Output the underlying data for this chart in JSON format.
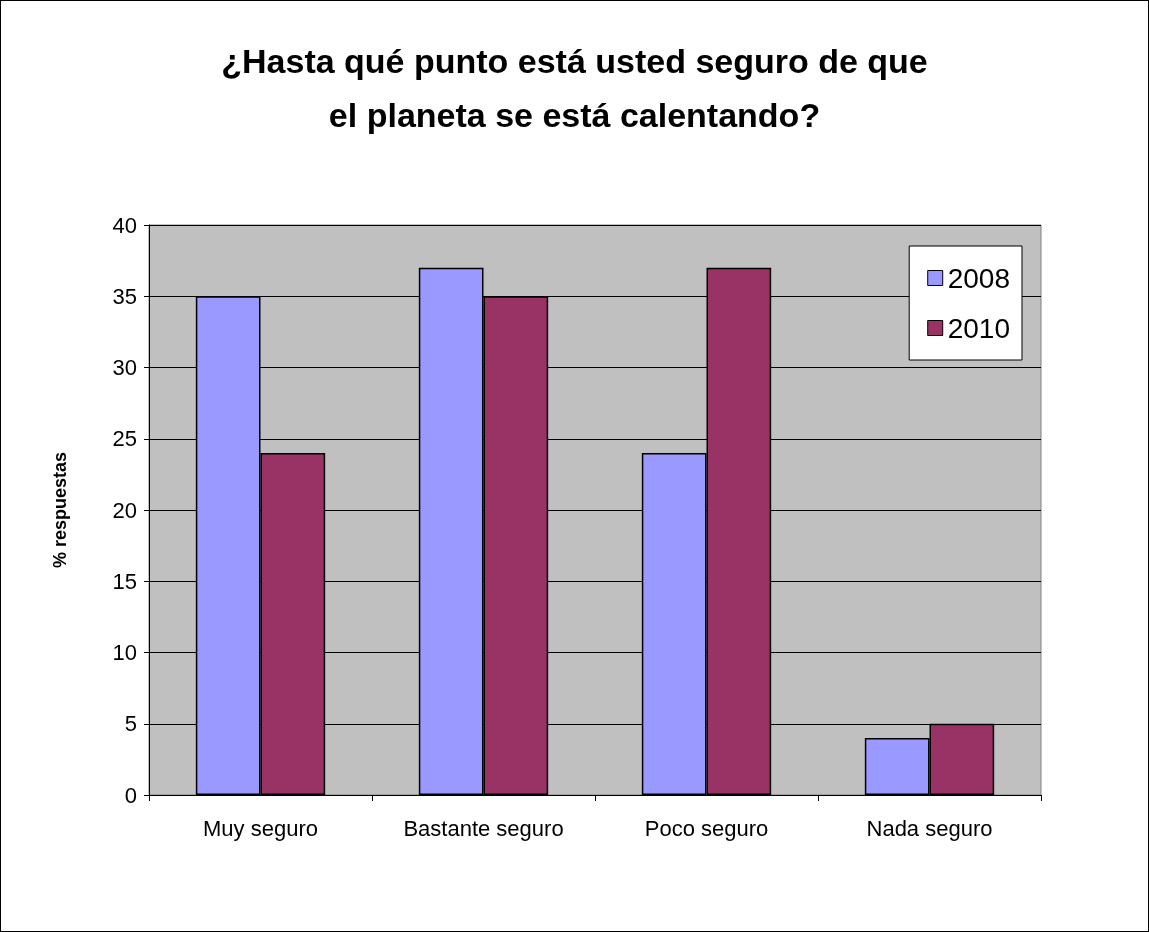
{
  "chart_data": {
    "type": "bar",
    "title": "¿Hasta qué punto está usted seguro de que\nel planeta se está calentando?",
    "ylabel": "% respuestas",
    "categories": [
      "Muy seguro",
      "Bastante seguro",
      "Poco seguro",
      "Nada seguro"
    ],
    "series": [
      {
        "name": "2008",
        "color": "#9999ff",
        "values": [
          35,
          37,
          24,
          4
        ]
      },
      {
        "name": "2010",
        "color": "#993366",
        "values": [
          24,
          35,
          37,
          5
        ]
      }
    ],
    "ylim": [
      0,
      40
    ],
    "yticks": [
      0,
      5,
      10,
      15,
      20,
      25,
      30,
      35,
      40
    ],
    "grid": "y",
    "legend": "top right"
  }
}
